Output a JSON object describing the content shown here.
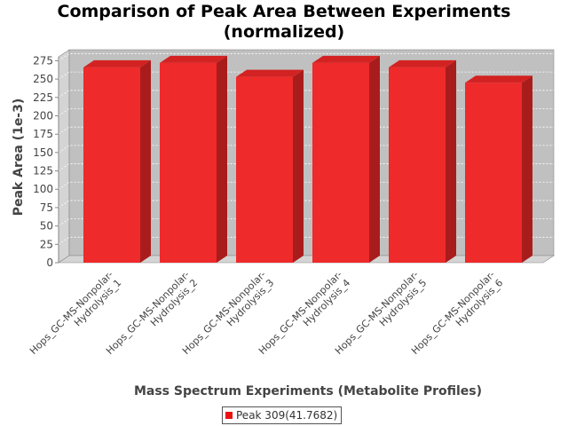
{
  "chart_data": {
    "type": "bar",
    "title_lines": [
      "Comparison of Peak Area Between Experiments",
      "(normalized)"
    ],
    "xlabel": "Mass Spectrum Experiments (Metabolite Profiles)",
    "ylabel": "Peak Area (1e-3)",
    "ylim": [
      0,
      290
    ],
    "yticks": [
      0,
      25,
      50,
      75,
      100,
      125,
      150,
      175,
      200,
      225,
      250,
      275
    ],
    "categories": [
      [
        "Hops_GC-MS-Nonpolar-",
        "Hydrolysis_1"
      ],
      [
        "Hops_GC-MS-Nonpolar-",
        "Hydrolysis_2"
      ],
      [
        "Hops_GC-MS-Nonpolar-",
        "Hydrolysis_3"
      ],
      [
        "Hops_GC-MS-Nonpolar-",
        "Hydrolysis_4"
      ],
      [
        "Hops_GC-MS-Nonpolar-",
        "Hydrolysis_5"
      ],
      [
        "Hops_GC-MS-Nonpolar-",
        "Hydrolysis_6"
      ]
    ],
    "series": [
      {
        "name": "Peak 309(41.7682)",
        "values": [
          266,
          272,
          253,
          272,
          266,
          245
        ]
      }
    ],
    "grid": true,
    "legend_placement": "bottom",
    "colors": {
      "bar_front": "#ee2a2a",
      "bar_top": "#d32222",
      "bar_side": "#a91c1c",
      "plot_background": "#c0c0c0",
      "gridline": "#ffffff",
      "legend_swatch": "#ee1111"
    }
  }
}
